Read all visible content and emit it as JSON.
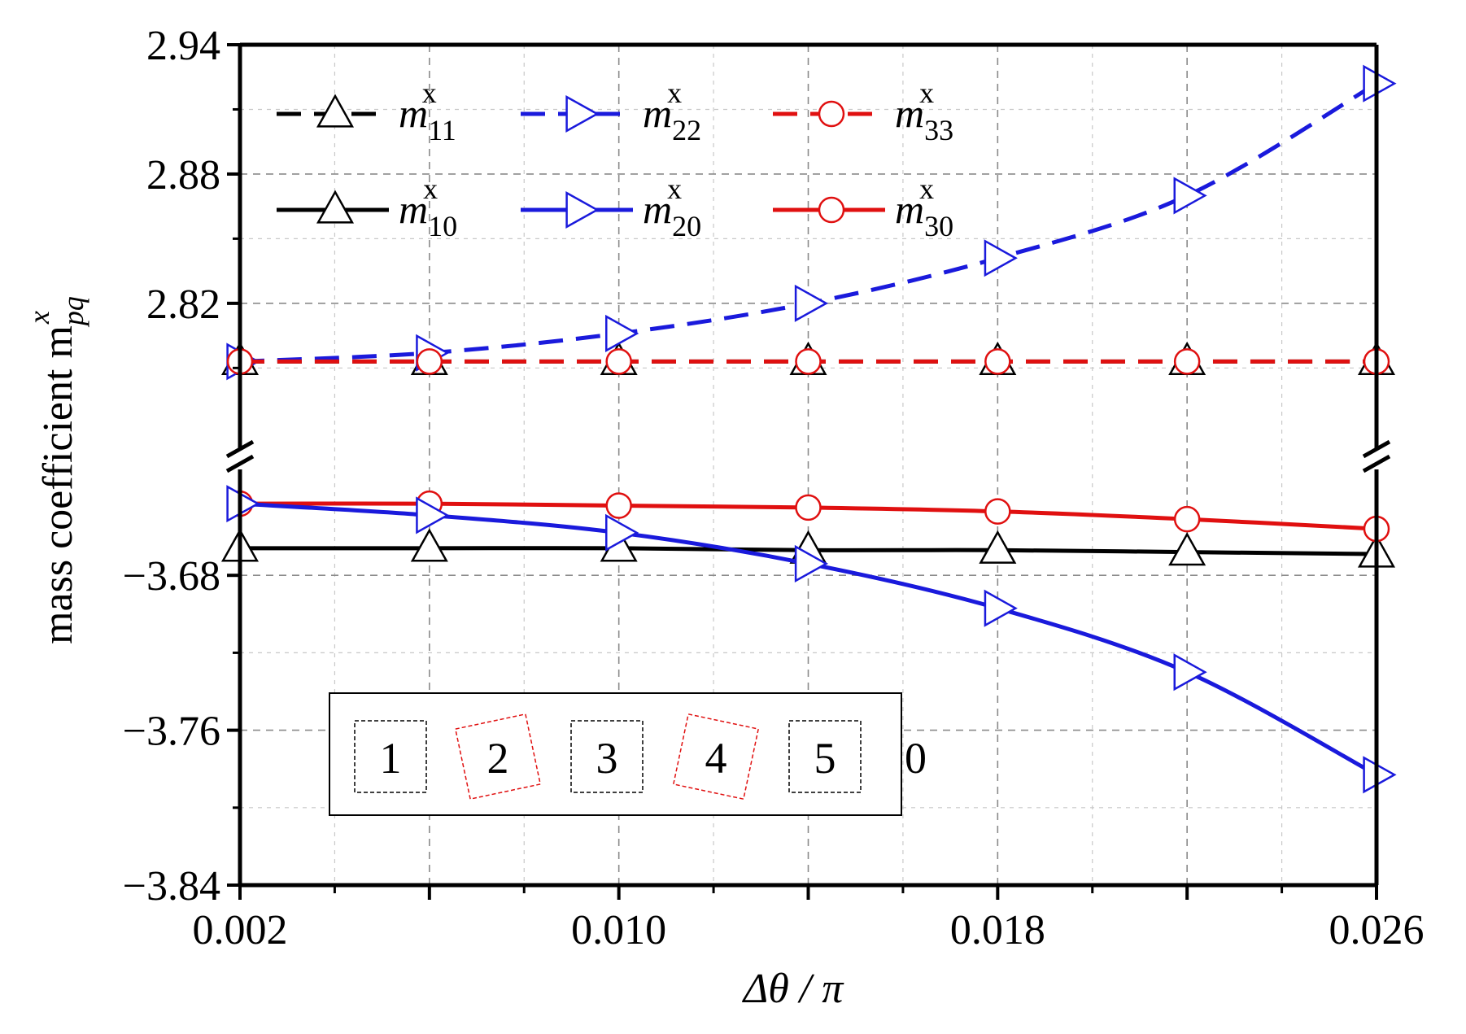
{
  "chart_data": {
    "type": "line",
    "xlabel": "Δθ / π",
    "ylabel": "mass coefficient m",
    "ylabel_sup": "x",
    "ylabel_sub": "pq",
    "x": [
      0.002,
      0.006,
      0.01,
      0.014,
      0.018,
      0.022,
      0.026
    ],
    "xlim": [
      0.002,
      0.026
    ],
    "xticks": [
      "0.002",
      "0.010",
      "0.018",
      "0.026"
    ],
    "y_upper": {
      "ylim": [
        2.772,
        2.94
      ],
      "ticks": [
        "2.82",
        "2.88",
        "2.94"
      ]
    },
    "y_lower": {
      "ylim": [
        -3.84,
        -3.64
      ],
      "ticks": [
        "−3.68",
        "−3.76",
        "−3.84"
      ]
    },
    "axis_break": true,
    "grid": true,
    "legend_position": "top-left",
    "series": [
      {
        "name": "m11",
        "sym": "m",
        "sub": "11",
        "sup": "x",
        "color": "#000000",
        "dash": "dashed",
        "marker": "triangle-up",
        "panel": "upper",
        "values": [
          2.793,
          2.793,
          2.793,
          2.793,
          2.793,
          2.793,
          2.793
        ]
      },
      {
        "name": "m22",
        "sym": "m",
        "sub": "22",
        "sup": "x",
        "color": "#1a1adc",
        "dash": "dashed",
        "marker": "triangle-right",
        "panel": "upper",
        "values": [
          2.793,
          2.797,
          2.806,
          2.82,
          2.841,
          2.87,
          2.922
        ]
      },
      {
        "name": "m33",
        "sym": "m",
        "sub": "33",
        "sup": "x",
        "color": "#e01010",
        "dash": "dashed",
        "marker": "circle",
        "panel": "upper",
        "values": [
          2.793,
          2.793,
          2.793,
          2.793,
          2.793,
          2.793,
          2.793
        ]
      },
      {
        "name": "m10",
        "sym": "m",
        "sub": "10",
        "sup": "x",
        "color": "#000000",
        "dash": "solid",
        "marker": "triangle-up",
        "panel": "lower",
        "values": [
          -3.666,
          -3.666,
          -3.666,
          -3.667,
          -3.667,
          -3.668,
          -3.669
        ]
      },
      {
        "name": "m20",
        "sym": "m",
        "sub": "20",
        "sup": "x",
        "color": "#1a1adc",
        "dash": "solid",
        "marker": "triangle-right",
        "panel": "lower",
        "values": [
          -3.643,
          -3.649,
          -3.658,
          -3.674,
          -3.697,
          -3.73,
          -3.783
        ]
      },
      {
        "name": "m30",
        "sym": "m",
        "sub": "30",
        "sup": "x",
        "color": "#e01010",
        "dash": "solid",
        "marker": "circle",
        "panel": "lower",
        "values": [
          -3.643,
          -3.643,
          -3.644,
          -3.645,
          -3.647,
          -3.651,
          -3.656
        ]
      }
    ]
  },
  "inset": {
    "labels": [
      "1",
      "2",
      "3",
      "4",
      "5",
      "0"
    ],
    "rotated": [
      false,
      true,
      false,
      true,
      false
    ]
  },
  "colors": {
    "black": "#000000",
    "blue": "#1a1adc",
    "red": "#e01010",
    "grid": "#8a8a8a"
  }
}
